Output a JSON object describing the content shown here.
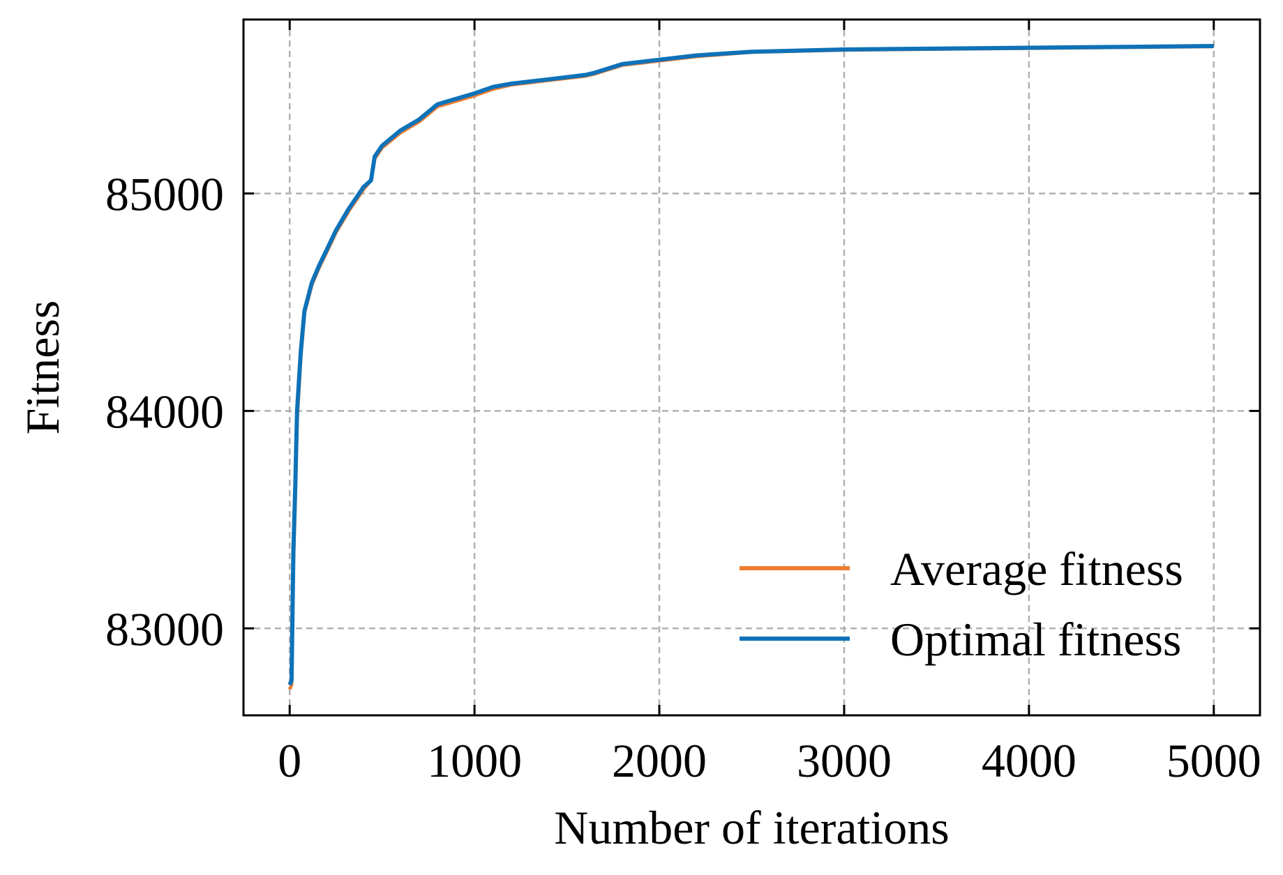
{
  "chart_data": {
    "type": "line",
    "title": "",
    "xlabel": "Number of iterations",
    "ylabel": "Fitness",
    "xlim": [
      -250,
      5250
    ],
    "ylim": [
      82600,
      85800
    ],
    "xticks": [
      0,
      1000,
      2000,
      3000,
      4000,
      5000
    ],
    "xtick_labels": [
      "0",
      "1000",
      "2000",
      "3000",
      "4000",
      "5000"
    ],
    "yticks": [
      83000,
      84000,
      85000
    ],
    "ytick_labels": [
      "83000",
      "84000",
      "85000"
    ],
    "grid": true,
    "legend_position": "lower-right",
    "series": [
      {
        "name": "Average fitness",
        "color": "#ED7D31",
        "points": [
          [
            0,
            82720
          ],
          [
            10,
            82740
          ],
          [
            20,
            83300
          ],
          [
            30,
            83600
          ],
          [
            40,
            83950
          ],
          [
            60,
            84250
          ],
          [
            80,
            84450
          ],
          [
            120,
            84580
          ],
          [
            160,
            84660
          ],
          [
            200,
            84730
          ],
          [
            250,
            84820
          ],
          [
            320,
            84920
          ],
          [
            400,
            85020
          ],
          [
            440,
            85060
          ],
          [
            460,
            85160
          ],
          [
            500,
            85210
          ],
          [
            600,
            85280
          ],
          [
            700,
            85330
          ],
          [
            800,
            85400
          ],
          [
            1000,
            85450
          ],
          [
            1100,
            85480
          ],
          [
            1200,
            85500
          ],
          [
            1400,
            85520
          ],
          [
            1600,
            85540
          ],
          [
            1650,
            85550
          ],
          [
            1800,
            85590
          ],
          [
            2000,
            85610
          ],
          [
            2200,
            85630
          ],
          [
            2500,
            85650
          ],
          [
            3000,
            85660
          ],
          [
            4000,
            85668
          ],
          [
            5000,
            85676
          ]
        ]
      },
      {
        "name": "Optimal fitness",
        "color": "#0E72B8",
        "points": [
          [
            0,
            82740
          ],
          [
            10,
            82760
          ],
          [
            20,
            83350
          ],
          [
            30,
            83650
          ],
          [
            40,
            84000
          ],
          [
            60,
            84270
          ],
          [
            80,
            84460
          ],
          [
            120,
            84590
          ],
          [
            160,
            84670
          ],
          [
            200,
            84740
          ],
          [
            250,
            84830
          ],
          [
            320,
            84930
          ],
          [
            400,
            85030
          ],
          [
            440,
            85060
          ],
          [
            460,
            85170
          ],
          [
            500,
            85220
          ],
          [
            600,
            85290
          ],
          [
            700,
            85340
          ],
          [
            800,
            85410
          ],
          [
            1000,
            85460
          ],
          [
            1100,
            85490
          ],
          [
            1200,
            85505
          ],
          [
            1400,
            85525
          ],
          [
            1600,
            85545
          ],
          [
            1650,
            85555
          ],
          [
            1800,
            85595
          ],
          [
            2000,
            85615
          ],
          [
            2200,
            85635
          ],
          [
            2500,
            85652
          ],
          [
            3000,
            85662
          ],
          [
            4000,
            85670
          ],
          [
            5000,
            85678
          ]
        ]
      }
    ]
  }
}
